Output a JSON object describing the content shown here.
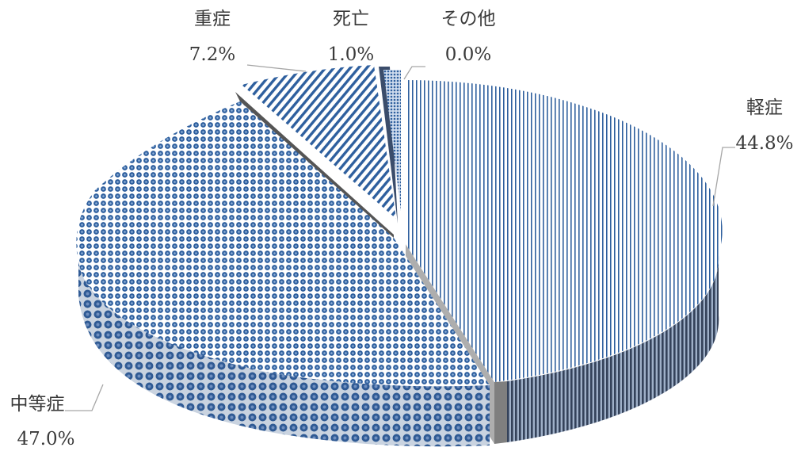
{
  "chart_data": {
    "type": "pie",
    "style": "3d-exploded",
    "slices": [
      {
        "label": "軽症",
        "value": 44.8,
        "display": "44.8%",
        "pattern": "vertical-stripes"
      },
      {
        "label": "中等症",
        "value": 47.0,
        "display": "47.0%",
        "pattern": "circles"
      },
      {
        "label": "重症",
        "value": 7.2,
        "display": "7.2%",
        "pattern": "diagonal-stripes"
      },
      {
        "label": "死亡",
        "value": 1.0,
        "display": "1.0%",
        "pattern": "dark-solid"
      },
      {
        "label": "その他",
        "value": 0.0,
        "display": "0.0%",
        "pattern": "small-dots"
      }
    ],
    "legend": "none",
    "colors": {
      "primary": "#2e5f9e",
      "side_dark": "#3b4d6b",
      "gray_edge": "#7f7f7f",
      "label_text": "#3a3a3a",
      "leader_line": "#a6a6a6"
    }
  }
}
